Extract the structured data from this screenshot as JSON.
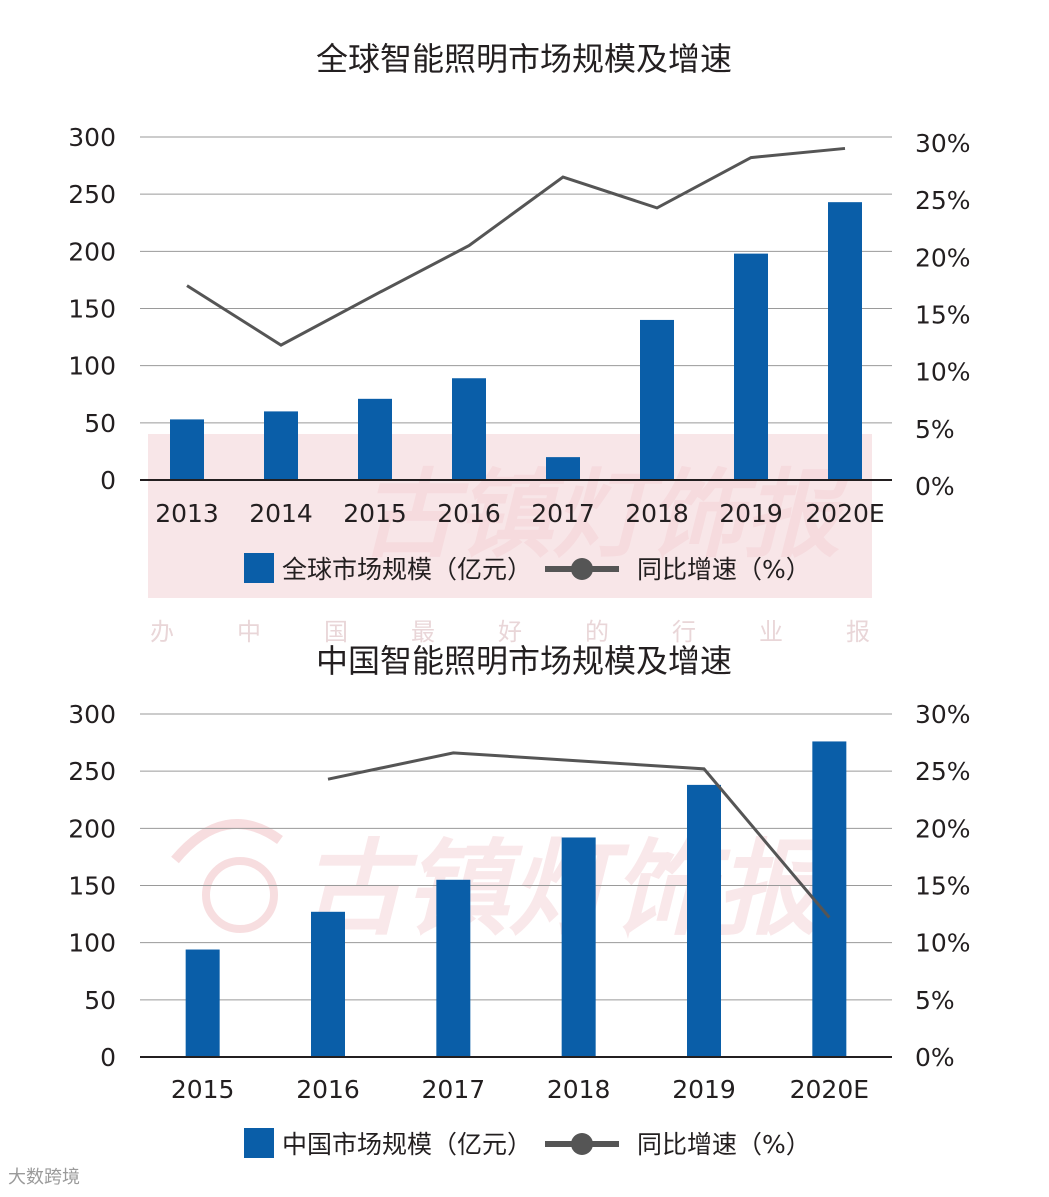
{
  "watermark": {
    "text": "古镇灯饰报",
    "caption": [
      "办",
      "中",
      "国",
      "最",
      "好",
      "的",
      "行",
      "业",
      "报"
    ],
    "color": "#f3d2d4"
  },
  "brand": {
    "text": "大数跨境"
  },
  "colors": {
    "bar": "#0a5ea8",
    "line": "#555555",
    "grid": "#9a9a9a",
    "axis": "#231f20"
  },
  "chart_data": [
    {
      "type": "bar",
      "title": "全球智能照明市场规模及增速",
      "categories": [
        "2013",
        "2014",
        "2015",
        "2016",
        "2017",
        "2018",
        "2019",
        "2020E"
      ],
      "series": [
        {
          "name": "全球市场规模（亿元）",
          "type": "bar",
          "axis": "left",
          "values": [
            53,
            60,
            71,
            89,
            20,
            140,
            198,
            243
          ]
        },
        {
          "name": "同比增速（%）",
          "type": "line",
          "axis": "right",
          "values": [
            17.0,
            11.8,
            16.2,
            20.5,
            26.5,
            23.8,
            28.2,
            29.0
          ]
        }
      ],
      "ylim": [
        0,
        300
      ],
      "yticks": [
        "300",
        "250",
        "200",
        "150",
        "100",
        "50",
        "0"
      ],
      "y2lim": [
        0,
        30
      ],
      "y2ticks": [
        "30%",
        "25%",
        "20%",
        "15%",
        "10%",
        "5%",
        "0%"
      ],
      "grid": true,
      "legend": "bottom-center"
    },
    {
      "type": "bar",
      "title": "中国智能照明市场规模及增速",
      "categories": [
        "2015",
        "2016",
        "2017",
        "2018",
        "2019",
        "2020E"
      ],
      "series": [
        {
          "name": "中国市场规模（亿元）",
          "type": "bar",
          "axis": "left",
          "values": [
            94,
            127,
            155,
            192,
            238,
            276
          ]
        },
        {
          "name": "同比增速（%）",
          "type": "line",
          "axis": "right",
          "values": [
            null,
            24.3,
            26.6,
            25.9,
            25.2,
            12.2
          ]
        }
      ],
      "ylim": [
        0,
        300
      ],
      "yticks": [
        "300",
        "250",
        "200",
        "150",
        "100",
        "50",
        "0"
      ],
      "y2lim": [
        0,
        30
      ],
      "y2ticks": [
        "30%",
        "25%",
        "20%",
        "15%",
        "10%",
        "5%",
        "0%"
      ],
      "grid": true,
      "legend": "bottom-center"
    }
  ]
}
